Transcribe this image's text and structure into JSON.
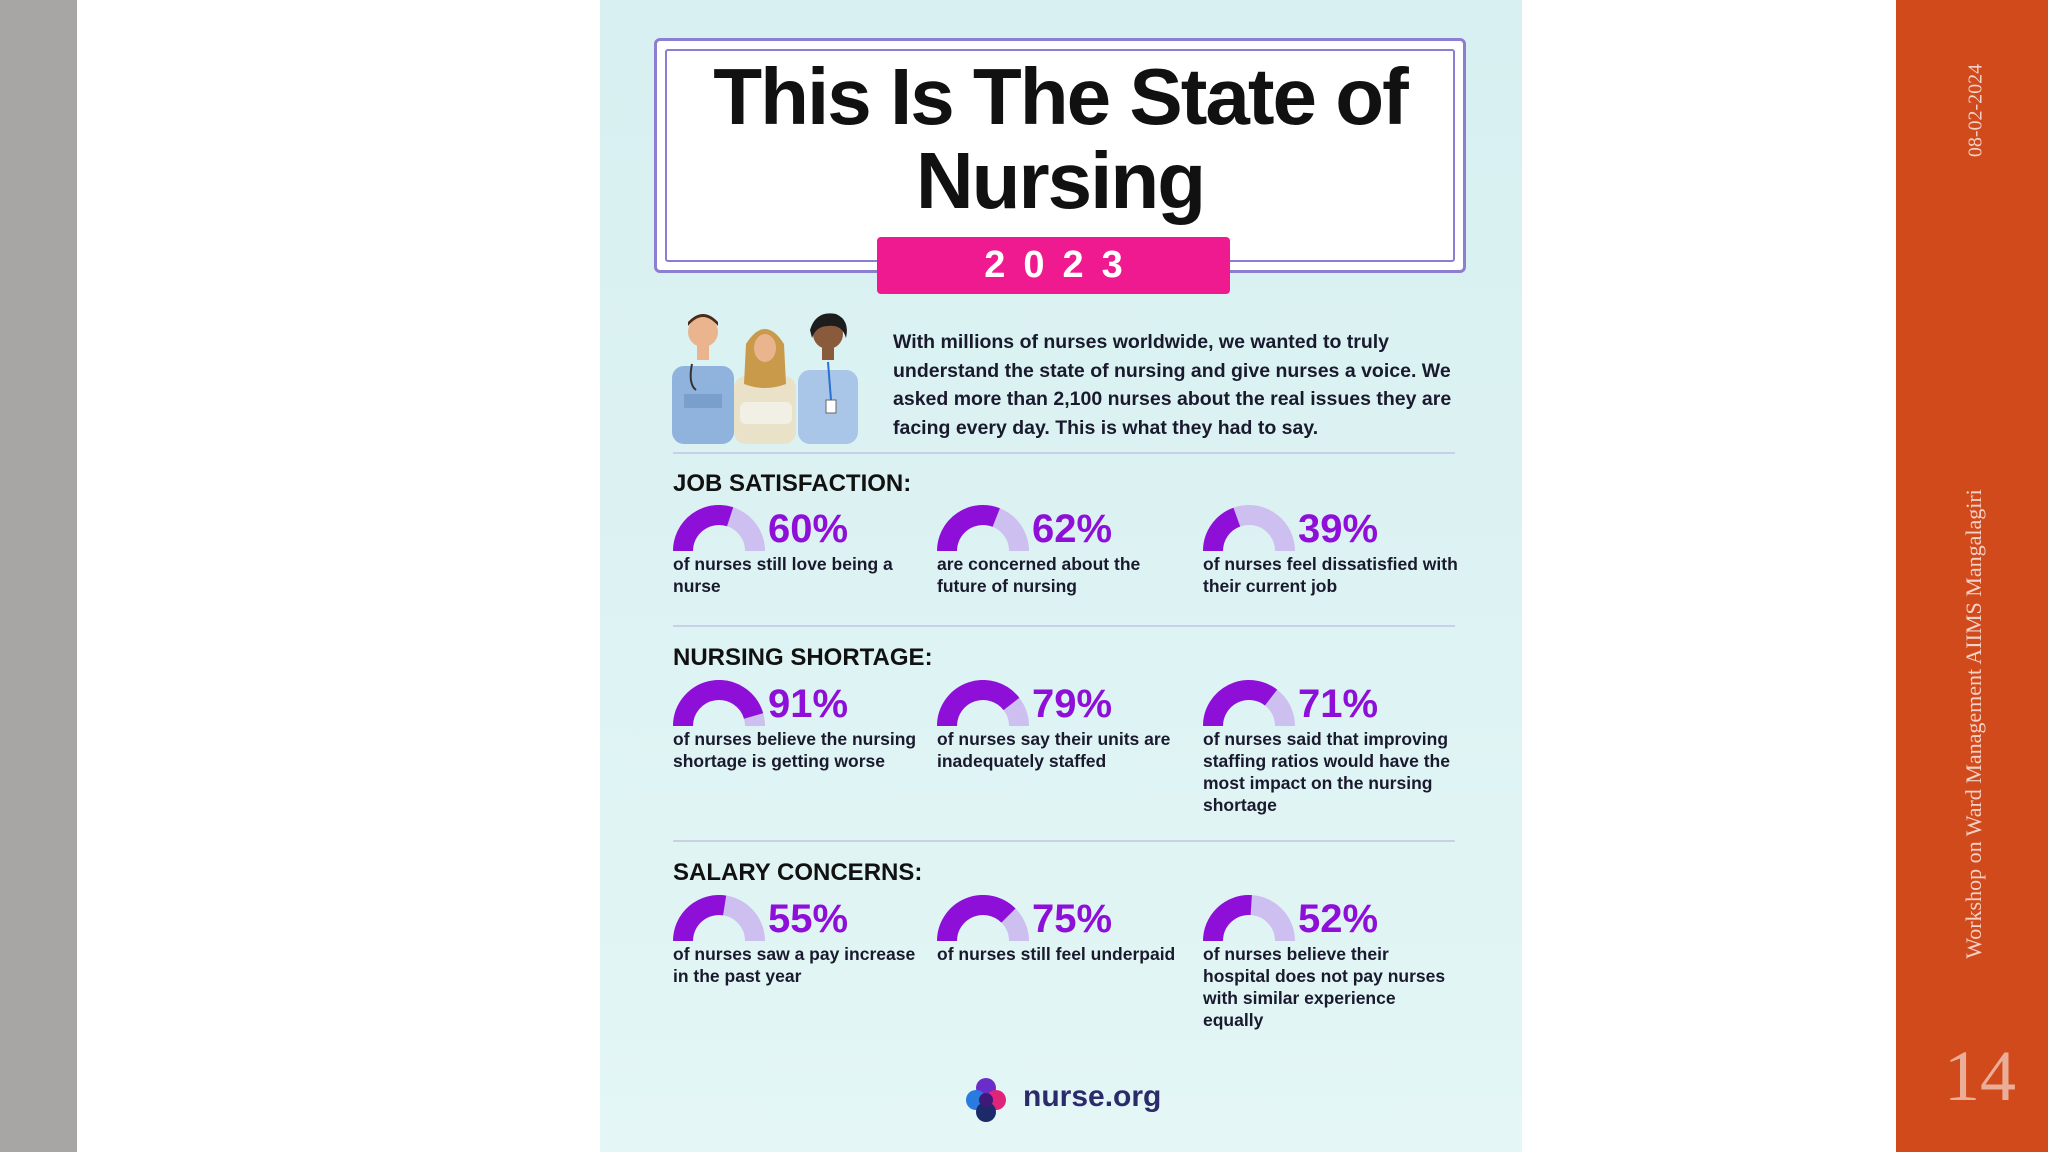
{
  "slide": {
    "date": "08-02-2024",
    "footer": "Workshop on Ward Management AIIMS Mangalagiri",
    "number": "14"
  },
  "infographic": {
    "title": "This Is The State of Nursing",
    "year": "2023",
    "intro": "With millions of nurses worldwide, we wanted to truly understand the state of nursing and give nurses a voice. We asked more than 2,100 nurses about the real issues they are facing every day. This is what they had to say.",
    "logo_text": "nurse.org",
    "colors": {
      "accent_purple": "#8e10d8",
      "gauge_track": "#cdbff0",
      "badge_pink": "#ef1a8f",
      "background": "#d8f0f1"
    },
    "sections": [
      {
        "heading": "JOB SATISFACTION:",
        "stats": [
          {
            "value": 60,
            "label": "60%",
            "desc": "of nurses still love being a nurse"
          },
          {
            "value": 62,
            "label": "62%",
            "desc": "are concerned about the future of nursing"
          },
          {
            "value": 39,
            "label": "39%",
            "desc": "of nurses feel dissatisfied with their current job"
          }
        ]
      },
      {
        "heading": "NURSING SHORTAGE:",
        "stats": [
          {
            "value": 91,
            "label": "91%",
            "desc": "of nurses believe the nursing shortage is getting worse"
          },
          {
            "value": 79,
            "label": "79%",
            "desc": "of nurses say their units are inadequately staffed"
          },
          {
            "value": 71,
            "label": "71%",
            "desc": "of nurses said that improving staffing ratios would have the most impact on the nursing shortage"
          }
        ]
      },
      {
        "heading": "SALARY CONCERNS:",
        "stats": [
          {
            "value": 55,
            "label": "55%",
            "desc": "of nurses saw a pay increase in the past year"
          },
          {
            "value": 75,
            "label": "75%",
            "desc": "of nurses still feel underpaid"
          },
          {
            "value": 52,
            "label": "52%",
            "desc": "of nurses believe their hospital does not pay nurses with similar experience equally"
          }
        ]
      }
    ]
  }
}
